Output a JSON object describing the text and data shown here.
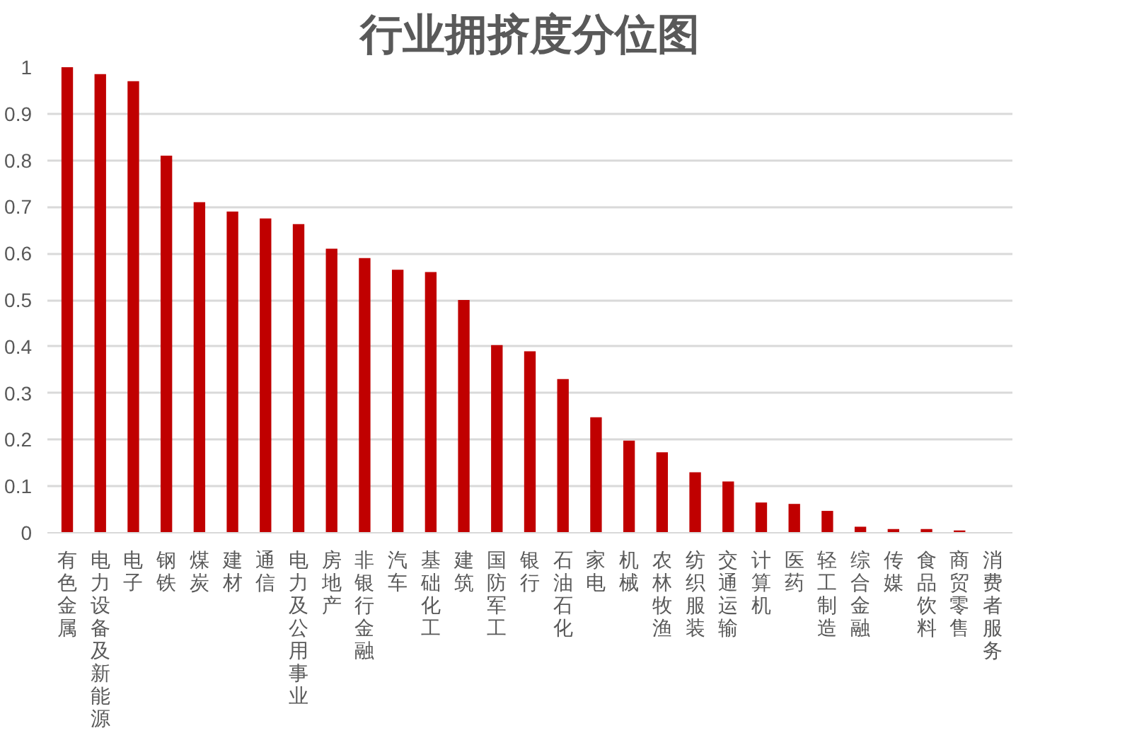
{
  "chart_data": {
    "type": "bar",
    "title": "行业拥挤度分位图",
    "categories": [
      "有色金属",
      "电力设备及新能源",
      "电子",
      "钢铁",
      "煤炭",
      "建材",
      "通信",
      "电力及公用事业",
      "房地产",
      "非银行金融",
      "汽车",
      "基础化工",
      "建筑",
      "国防军工",
      "银行",
      "石油石化",
      "家电",
      "机械",
      "农林牧渔",
      "纺织服装",
      "交通运输",
      "计算机",
      "医药",
      "轻工制造",
      "综合金融",
      "传媒",
      "食品饮料",
      "商贸零售",
      "消费者服务"
    ],
    "values": [
      1.0,
      0.985,
      0.97,
      0.81,
      0.71,
      0.69,
      0.675,
      0.663,
      0.61,
      0.59,
      0.565,
      0.56,
      0.5,
      0.403,
      0.39,
      0.33,
      0.248,
      0.198,
      0.173,
      0.13,
      0.11,
      0.065,
      0.062,
      0.047,
      0.013,
      0.008,
      0.008,
      0.005,
      0
    ],
    "color": "#c00000",
    "ylim": [
      0,
      1
    ],
    "yticks": [
      0,
      0.1,
      0.2,
      0.3,
      0.4,
      0.5,
      0.6,
      0.7,
      0.8,
      0.9,
      1
    ],
    "grid": "y"
  }
}
